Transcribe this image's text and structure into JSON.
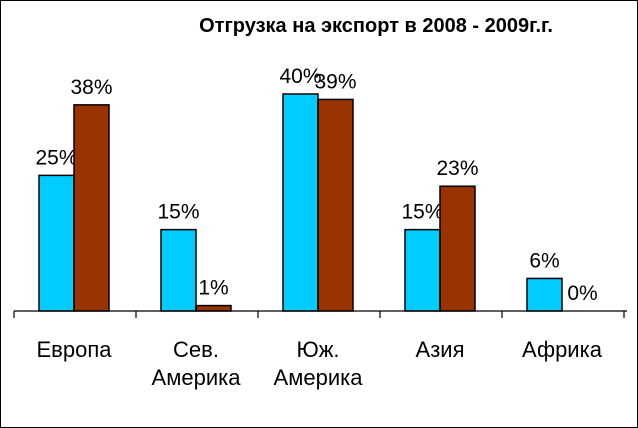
{
  "chart_data": {
    "type": "bar",
    "title": "Отгрузка на экспорт в 2008 - 2009г.г.",
    "xlabel": "",
    "ylabel": "",
    "ylim": [
      0,
      40
    ],
    "grid": false,
    "legend": "none",
    "categories": [
      [
        "Европа"
      ],
      [
        "Сев.",
        "Америка"
      ],
      [
        "Юж.",
        "Америка"
      ],
      [
        "Азия"
      ],
      [
        "Африка"
      ]
    ],
    "series": [
      {
        "values": [
          25,
          15,
          40,
          15,
          6
        ],
        "labels": [
          "25%",
          "15%",
          "40%",
          "15%",
          "6%"
        ],
        "color": "#00CCFF"
      },
      {
        "values": [
          38,
          1,
          39,
          23,
          0
        ],
        "labels": [
          "38%",
          "1%",
          "39%",
          "23%",
          "0%"
        ],
        "color": "#993300"
      }
    ]
  }
}
